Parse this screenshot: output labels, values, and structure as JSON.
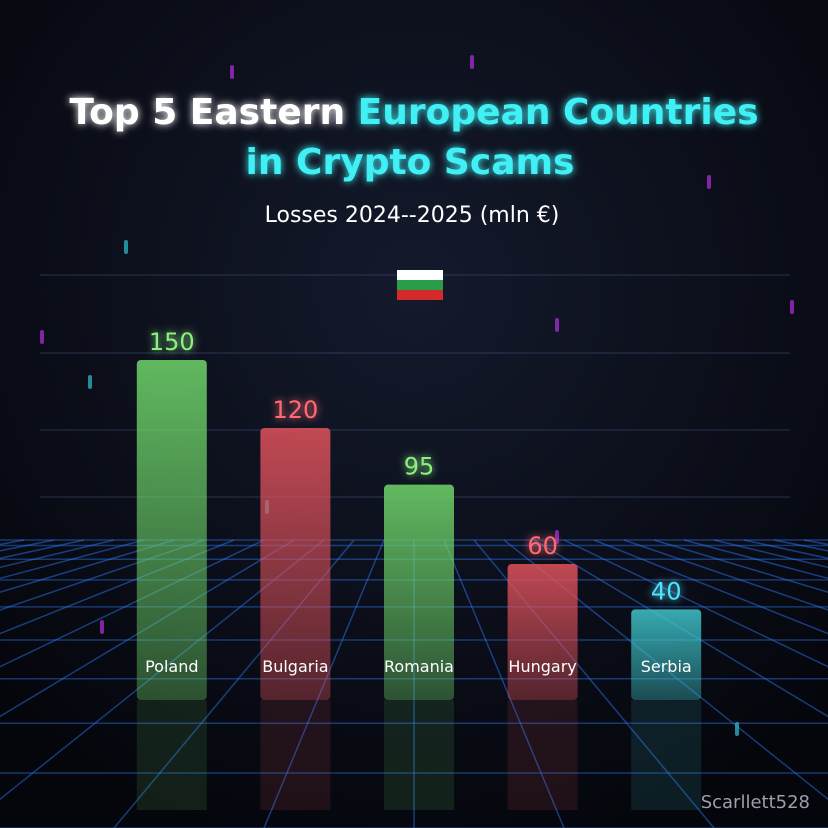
{
  "chart_data": {
    "type": "bar",
    "title": [
      "Top 5 Eastern",
      "European Countries",
      "in Crypto Scams"
    ],
    "subtitle": "Losses 2024--2025 (mln €)",
    "categories": [
      "Poland",
      "Bulgaria",
      "Romania",
      "Hungary",
      "Serbia"
    ],
    "values": [
      150,
      120,
      95,
      60,
      40
    ],
    "colors": [
      "#6fd66a",
      "#e0525c",
      "#6fd66a",
      "#e0525c",
      "#3fc6cc"
    ],
    "label_colors": [
      "#8cf07f",
      "#ff6a72",
      "#8cf07f",
      "#ff6a72",
      "#4fe2ff"
    ],
    "watermark": "Scarllett528"
  }
}
